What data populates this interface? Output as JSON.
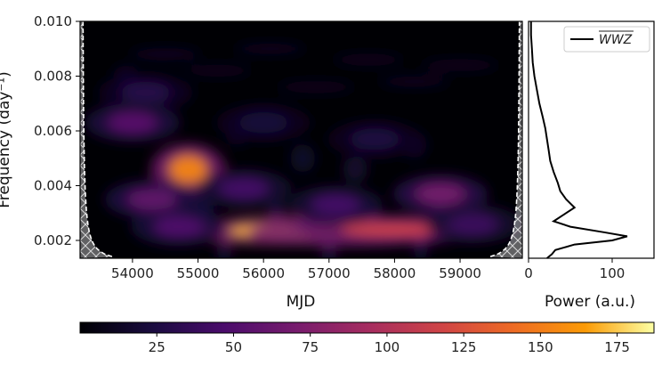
{
  "chart_data": [
    {
      "type": "heatmap",
      "title": "",
      "xlabel": "MJD",
      "ylabel": "Frequency (day⁻¹)",
      "xlim": [
        53200,
        59950
      ],
      "ylim": [
        0.00135,
        0.01
      ],
      "x_ticks": [
        {
          "value": 54000,
          "label": "54000"
        },
        {
          "value": 55000,
          "label": "55000"
        },
        {
          "value": 56000,
          "label": "56000"
        },
        {
          "value": 57000,
          "label": "57000"
        },
        {
          "value": 58000,
          "label": "58000"
        },
        {
          "value": 59000,
          "label": "59000"
        }
      ],
      "y_ticks": [
        {
          "value": 0.002,
          "label": "0.002"
        },
        {
          "value": 0.004,
          "label": "0.004"
        },
        {
          "value": 0.006,
          "label": "0.006"
        },
        {
          "value": 0.008,
          "label": "0.008"
        },
        {
          "value": 0.01,
          "label": "0.010"
        }
      ],
      "colormap": "inferno",
      "cone_of_influence": true,
      "hot_spots": [
        {
          "x": 56300,
          "y": 0.00235,
          "power": 170
        },
        {
          "x": 57300,
          "y": 0.0023,
          "power": 150
        },
        {
          "x": 58000,
          "y": 0.0024,
          "power": 115
        },
        {
          "x": 54850,
          "y": 0.0046,
          "power": 155
        },
        {
          "x": 54300,
          "y": 0.0035,
          "power": 60
        },
        {
          "x": 54000,
          "y": 0.0063,
          "power": 55
        },
        {
          "x": 55700,
          "y": 0.0039,
          "power": 45
        },
        {
          "x": 57100,
          "y": 0.0033,
          "power": 45
        },
        {
          "x": 58700,
          "y": 0.0037,
          "power": 70
        },
        {
          "x": 54700,
          "y": 0.0025,
          "power": 50
        },
        {
          "x": 59200,
          "y": 0.0026,
          "power": 40
        },
        {
          "x": 54200,
          "y": 0.0074,
          "power": 30
        },
        {
          "x": 56000,
          "y": 0.0063,
          "power": 22
        },
        {
          "x": 57700,
          "y": 0.0057,
          "power": 25
        }
      ]
    },
    {
      "type": "line",
      "xlabel": "Power (a.u.)",
      "ylabel": "",
      "xlim": [
        0,
        150
      ],
      "ylim": [
        0.00135,
        0.01
      ],
      "x_ticks": [
        {
          "value": 0,
          "label": "0"
        },
        {
          "value": 100,
          "label": "100"
        }
      ],
      "legend": {
        "position": "top-right",
        "entries": [
          "WWZ"
        ]
      },
      "series": [
        {
          "name": "WWZ",
          "color": "#000000",
          "points": [
            [
              22,
              0.00135
            ],
            [
              28,
              0.0015
            ],
            [
              32,
              0.00165
            ],
            [
              55,
              0.00185
            ],
            [
              100,
              0.002
            ],
            [
              118,
              0.00215
            ],
            [
              90,
              0.0023
            ],
            [
              50,
              0.0025
            ],
            [
              30,
              0.0027
            ],
            [
              40,
              0.0029
            ],
            [
              55,
              0.0032
            ],
            [
              45,
              0.0035
            ],
            [
              38,
              0.0038
            ],
            [
              35,
              0.0041
            ],
            [
              30,
              0.0045
            ],
            [
              26,
              0.0049
            ],
            [
              24,
              0.0053
            ],
            [
              22,
              0.0057
            ],
            [
              20,
              0.0061
            ],
            [
              17,
              0.0065
            ],
            [
              13,
              0.007
            ],
            [
              10,
              0.0075
            ],
            [
              7,
              0.008
            ],
            [
              5,
              0.0085
            ],
            [
              4,
              0.009
            ],
            [
              3,
              0.0095
            ],
            [
              3,
              0.01
            ]
          ]
        }
      ]
    },
    {
      "type": "colorbar",
      "range": [
        0,
        187
      ],
      "ticks": [
        {
          "value": 25,
          "label": "25"
        },
        {
          "value": 50,
          "label": "50"
        },
        {
          "value": 75,
          "label": "75"
        },
        {
          "value": 100,
          "label": "100"
        },
        {
          "value": 125,
          "label": "125"
        },
        {
          "value": 150,
          "label": "150"
        },
        {
          "value": 175,
          "label": "175"
        }
      ]
    }
  ]
}
